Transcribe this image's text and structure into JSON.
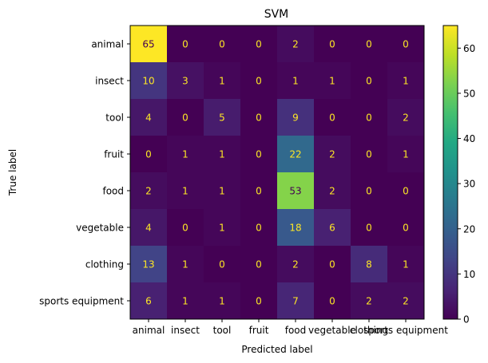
{
  "chart_data": {
    "type": "heatmap",
    "title": "SVM",
    "xlabel": "Predicted label",
    "ylabel": "True label",
    "labels": [
      "animal",
      "insect",
      "tool",
      "fruit",
      "food",
      "vegetable",
      "clothing",
      "sports equipment"
    ],
    "matrix": [
      [
        65,
        0,
        0,
        0,
        2,
        0,
        0,
        0
      ],
      [
        10,
        3,
        1,
        0,
        1,
        1,
        0,
        1
      ],
      [
        4,
        0,
        5,
        0,
        9,
        0,
        0,
        2
      ],
      [
        0,
        1,
        1,
        0,
        22,
        2,
        0,
        1
      ],
      [
        2,
        1,
        1,
        0,
        53,
        2,
        0,
        0
      ],
      [
        4,
        0,
        1,
        0,
        18,
        6,
        0,
        0
      ],
      [
        13,
        1,
        0,
        0,
        2,
        0,
        8,
        1
      ],
      [
        6,
        1,
        1,
        0,
        7,
        0,
        2,
        2
      ]
    ],
    "colormap": "viridis",
    "colorbar": {
      "min": 0,
      "max": 65,
      "ticks": [
        0,
        10,
        20,
        30,
        40,
        50,
        60
      ]
    },
    "grid": false
  }
}
